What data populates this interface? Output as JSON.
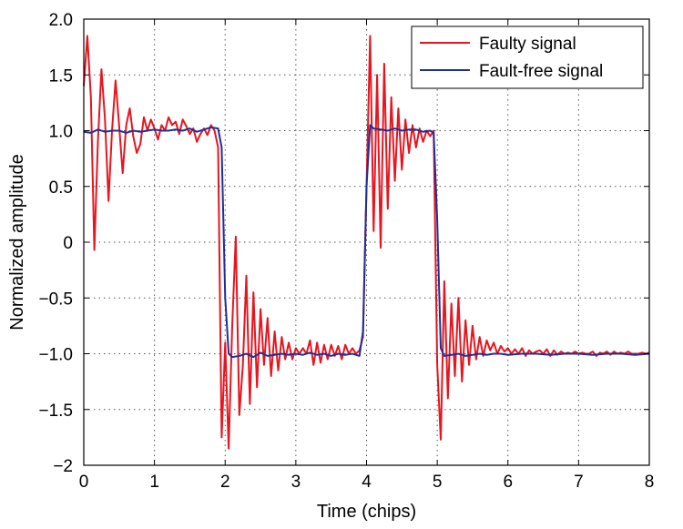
{
  "chart_data": {
    "type": "line",
    "title": "",
    "xlabel": "Time (chips)",
    "ylabel": "Normalized amplitude",
    "xlim": [
      0,
      8
    ],
    "ylim": [
      -2,
      2
    ],
    "xticks": [
      0,
      1,
      2,
      3,
      4,
      5,
      6,
      7,
      8
    ],
    "xtick_labels": [
      "0",
      "1",
      "2",
      "3",
      "4",
      "5",
      "6",
      "7",
      "8"
    ],
    "yticks": [
      -2,
      -1.5,
      -1,
      -0.5,
      0,
      0.5,
      1,
      1.5,
      2
    ],
    "ytick_labels": [
      "−2",
      "−1.5",
      "−1.0",
      "−0.5",
      "0",
      "0.5",
      "1.0",
      "1.5",
      "2.0"
    ],
    "grid": true,
    "legend_position": "top-right",
    "series": [
      {
        "name": "Faulty signal",
        "color": "#e8141e",
        "x": [
          0.0,
          0.05,
          0.1,
          0.15,
          0.2,
          0.25,
          0.3,
          0.35,
          0.4,
          0.45,
          0.5,
          0.55,
          0.6,
          0.65,
          0.7,
          0.75,
          0.8,
          0.85,
          0.9,
          0.95,
          1.0,
          1.05,
          1.1,
          1.15,
          1.2,
          1.25,
          1.3,
          1.35,
          1.4,
          1.45,
          1.5,
          1.55,
          1.6,
          1.65,
          1.7,
          1.75,
          1.8,
          1.85,
          1.9,
          1.95,
          2.0,
          2.05,
          2.1,
          2.15,
          2.2,
          2.25,
          2.3,
          2.35,
          2.4,
          2.45,
          2.5,
          2.55,
          2.6,
          2.65,
          2.7,
          2.75,
          2.8,
          2.85,
          2.9,
          2.95,
          3.0,
          3.05,
          3.1,
          3.15,
          3.2,
          3.25,
          3.3,
          3.35,
          3.4,
          3.45,
          3.5,
          3.55,
          3.6,
          3.65,
          3.7,
          3.75,
          3.8,
          3.85,
          3.9,
          3.95,
          4.0,
          4.05,
          4.1,
          4.15,
          4.2,
          4.25,
          4.3,
          4.35,
          4.4,
          4.45,
          4.5,
          4.55,
          4.6,
          4.65,
          4.7,
          4.75,
          4.8,
          4.85,
          4.9,
          4.95,
          5.0,
          5.05,
          5.1,
          5.15,
          5.2,
          5.25,
          5.3,
          5.35,
          5.4,
          5.45,
          5.5,
          5.55,
          5.6,
          5.65,
          5.7,
          5.75,
          5.8,
          5.85,
          5.9,
          5.95,
          6.0,
          6.05,
          6.1,
          6.15,
          6.2,
          6.25,
          6.3,
          6.35,
          6.4,
          6.45,
          6.5,
          6.55,
          6.6,
          6.65,
          6.7,
          6.75,
          6.8,
          6.85,
          6.9,
          6.95,
          7.0,
          7.05,
          7.1,
          7.15,
          7.2,
          7.25,
          7.3,
          7.35,
          7.4,
          7.45,
          7.5,
          7.55,
          7.6,
          7.65,
          7.7,
          7.75,
          7.8,
          7.85,
          7.9,
          7.95,
          8.0
        ],
        "y": [
          1.4,
          1.85,
          1.3,
          -0.07,
          0.9,
          1.55,
          1.1,
          0.37,
          1.0,
          1.45,
          1.05,
          0.62,
          1.05,
          1.2,
          0.95,
          0.8,
          0.88,
          1.12,
          1.0,
          1.1,
          1.02,
          0.92,
          1.05,
          1.0,
          1.12,
          1.05,
          1.08,
          0.97,
          1.1,
          1.04,
          0.97,
          1.02,
          0.9,
          0.97,
          1.02,
          0.96,
          1.05,
          1.0,
          0.85,
          -1.75,
          -0.9,
          -1.85,
          -0.75,
          0.05,
          -1.55,
          -1.1,
          -0.3,
          -1.45,
          -0.45,
          -1.3,
          -0.6,
          -1.1,
          -0.68,
          -1.2,
          -0.8,
          -1.15,
          -0.85,
          -1.05,
          -0.9,
          -1.05,
          -0.95,
          -1.0,
          -0.95,
          -1.0,
          -0.88,
          -1.1,
          -0.9,
          -1.08,
          -0.92,
          -1.05,
          -0.92,
          -1.02,
          -0.93,
          -1.05,
          -0.92,
          -1.0,
          -0.95,
          -1.0,
          -0.97,
          -0.85,
          0.5,
          1.85,
          0.1,
          1.5,
          -0.05,
          1.6,
          0.3,
          1.3,
          0.55,
          1.2,
          0.65,
          1.1,
          0.8,
          1.05,
          0.85,
          1.02,
          0.9,
          1.0,
          0.95,
          1.0,
          -1.1,
          -1.77,
          -0.35,
          -1.4,
          -0.55,
          -1.2,
          -0.5,
          -1.25,
          -0.7,
          -1.1,
          -0.75,
          -1.05,
          -0.85,
          -1.02,
          -0.88,
          -0.97,
          -0.9,
          -1.0,
          -0.93,
          -0.98,
          -0.95,
          -1.0,
          -0.96,
          -1.0,
          -0.95,
          -1.02,
          -0.97,
          -1.0,
          -0.98,
          -0.97,
          -1.0,
          -0.96,
          -1.02,
          -0.97,
          -1.01,
          -0.98,
          -1.0,
          -0.99,
          -1.0,
          -0.98,
          -1.0,
          -0.99,
          -1.0,
          -1.0,
          -0.98,
          -1.02,
          -0.99,
          -1.0,
          -0.98,
          -1.01,
          -0.98,
          -1.0,
          -0.99,
          -1.0,
          -0.98,
          -1.0,
          -1.0,
          -1.0,
          -0.99,
          -1.0,
          -0.99
        ]
      },
      {
        "name": "Fault-free signal",
        "color": "#1f2f9a",
        "x": [
          0.0,
          0.1,
          0.2,
          0.3,
          0.4,
          0.5,
          0.6,
          0.7,
          0.8,
          0.9,
          1.0,
          1.1,
          1.2,
          1.3,
          1.4,
          1.5,
          1.6,
          1.7,
          1.8,
          1.9,
          1.95,
          2.0,
          2.05,
          2.1,
          2.2,
          2.3,
          2.4,
          2.5,
          2.6,
          2.7,
          2.8,
          2.9,
          3.0,
          3.1,
          3.2,
          3.3,
          3.4,
          3.5,
          3.6,
          3.7,
          3.8,
          3.9,
          3.95,
          4.0,
          4.05,
          4.1,
          4.2,
          4.3,
          4.4,
          4.5,
          4.6,
          4.7,
          4.8,
          4.9,
          4.95,
          5.0,
          5.05,
          5.1,
          5.2,
          5.3,
          5.4,
          5.5,
          5.6,
          5.7,
          5.8,
          5.9,
          6.0,
          6.2,
          6.4,
          6.6,
          6.8,
          7.0,
          7.2,
          7.4,
          7.6,
          7.8,
          8.0
        ],
        "y": [
          0.99,
          0.98,
          1.01,
          0.99,
          1.0,
          1.0,
          0.98,
          1.0,
          0.99,
          1.0,
          1.01,
          1.0,
          1.0,
          1.01,
          1.0,
          1.02,
          0.99,
          1.01,
          1.03,
          1.02,
          0.85,
          -0.5,
          -1.0,
          -1.03,
          -1.02,
          -1.0,
          -1.03,
          -0.99,
          -1.02,
          -1.01,
          -1.0,
          -1.01,
          -1.0,
          -1.01,
          -0.99,
          -1.01,
          -1.0,
          -1.02,
          -1.0,
          -1.01,
          -1.0,
          -1.02,
          -0.8,
          0.5,
          1.05,
          1.02,
          1.01,
          1.0,
          1.02,
          1.0,
          1.01,
          1.01,
          0.99,
          1.0,
          0.98,
          0.2,
          -0.95,
          -1.02,
          -1.01,
          -1.0,
          -1.02,
          -1.01,
          -1.0,
          -1.01,
          -1.0,
          -1.0,
          -1.01,
          -1.0,
          -1.0,
          -1.01,
          -1.0,
          -1.0,
          -1.01,
          -1.0,
          -1.0,
          -1.01,
          -1.0
        ]
      }
    ]
  }
}
